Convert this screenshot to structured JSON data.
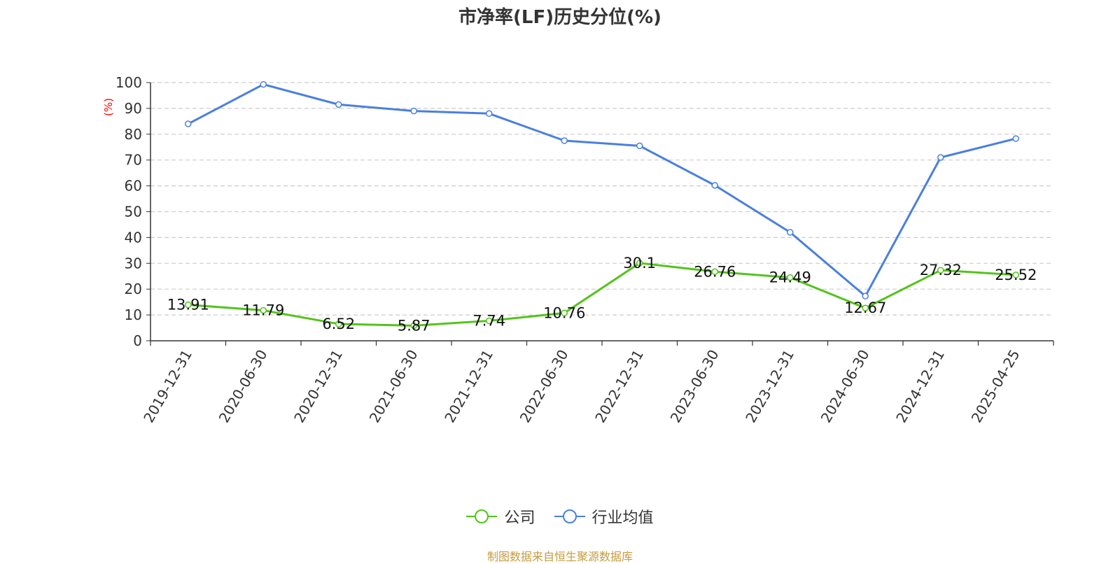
{
  "chart_data": {
    "type": "line",
    "title": "市净率(LF)历史分位(%)",
    "ylabel": "(%)",
    "xlabel": "",
    "ylim": [
      0,
      100
    ],
    "y_ticks": [
      0,
      10,
      20,
      30,
      40,
      50,
      60,
      70,
      80,
      90,
      100
    ],
    "grid": true,
    "legend_position": "bottom",
    "categories": [
      "2019-12-31",
      "2020-06-30",
      "2020-12-31",
      "2021-06-30",
      "2021-12-31",
      "2022-06-30",
      "2022-12-31",
      "2023-06-30",
      "2023-12-31",
      "2024-06-30",
      "2024-12-31",
      "2025-04-25"
    ],
    "series": [
      {
        "name": "公司",
        "color": "#52c41a",
        "values": [
          13.91,
          11.79,
          6.52,
          5.87,
          7.74,
          10.76,
          30.1,
          26.76,
          24.49,
          12.67,
          27.32,
          25.52
        ],
        "labels": [
          "13.91",
          "11.79",
          "6.52",
          "5.87",
          "7.74",
          "10.76",
          "30.1",
          "26.76",
          "24.49",
          "12.67",
          "27.32",
          "25.52"
        ]
      },
      {
        "name": "行业均值",
        "color": "#4a7fe0",
        "values": [
          84,
          99.3,
          91.5,
          89,
          88,
          77.5,
          75.5,
          60.2,
          42,
          17.3,
          71,
          78.3
        ]
      }
    ]
  },
  "source_text": "制图数据来自恒生聚源数据库"
}
